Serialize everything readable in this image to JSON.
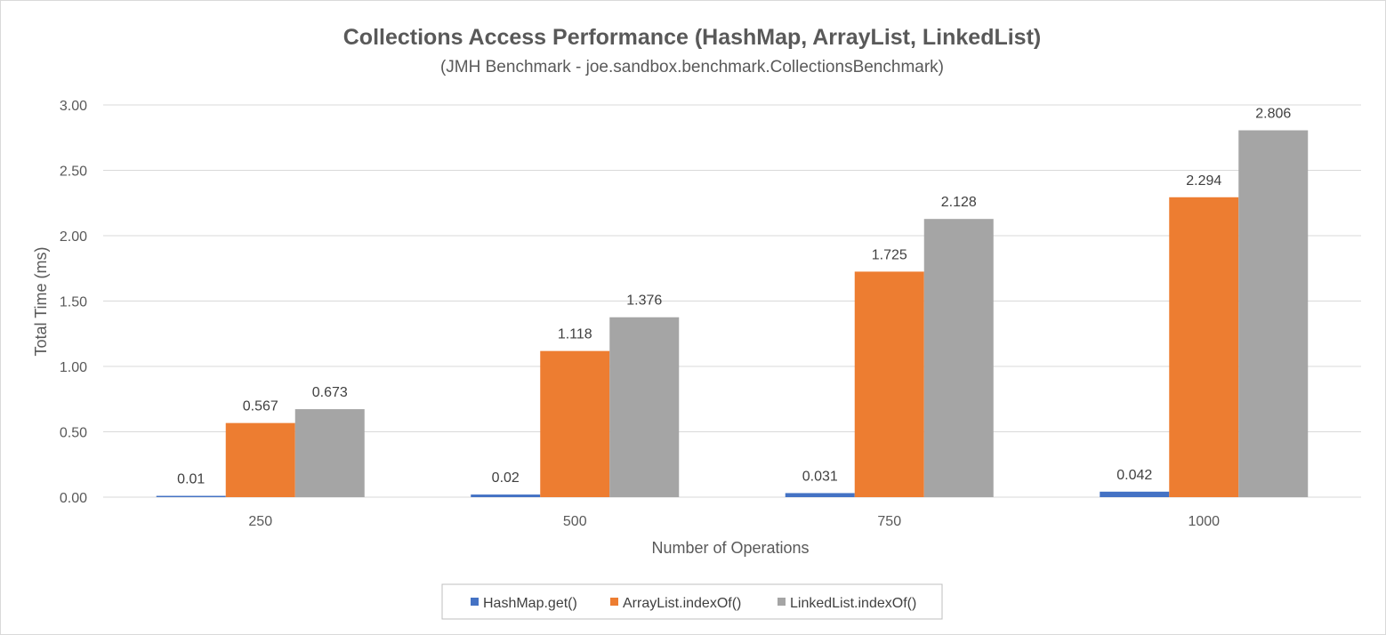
{
  "chart_data": {
    "type": "bar",
    "title": "Collections Access Performance (HashMap, ArrayList, LinkedList)",
    "subtitle": "(JMH Benchmark - joe.sandbox.benchmark.CollectionsBenchmark)",
    "xlabel": "Number of Operations",
    "ylabel": "Total Time (ms)",
    "categories": [
      "250",
      "500",
      "750",
      "1000"
    ],
    "ylim": [
      0,
      3.0
    ],
    "yticks": [
      "0.00",
      "0.50",
      "1.00",
      "1.50",
      "2.00",
      "2.50",
      "3.00"
    ],
    "grid": true,
    "legend_position": "bottom",
    "series": [
      {
        "name": "HashMap.get()",
        "color": "#4472c4",
        "values": [
          0.01,
          0.02,
          0.031,
          0.042
        ],
        "labels": [
          "0.01",
          "0.02",
          "0.031",
          "0.042"
        ]
      },
      {
        "name": "ArrayList.indexOf()",
        "color": "#ed7d31",
        "values": [
          0.567,
          1.118,
          1.725,
          2.294
        ],
        "labels": [
          "0.567",
          "1.118",
          "1.725",
          "2.294"
        ]
      },
      {
        "name": "LinkedList.indexOf()",
        "color": "#a5a5a5",
        "values": [
          0.673,
          1.376,
          2.128,
          2.806
        ],
        "labels": [
          "0.673",
          "1.376",
          "2.128",
          "2.806"
        ]
      }
    ]
  }
}
